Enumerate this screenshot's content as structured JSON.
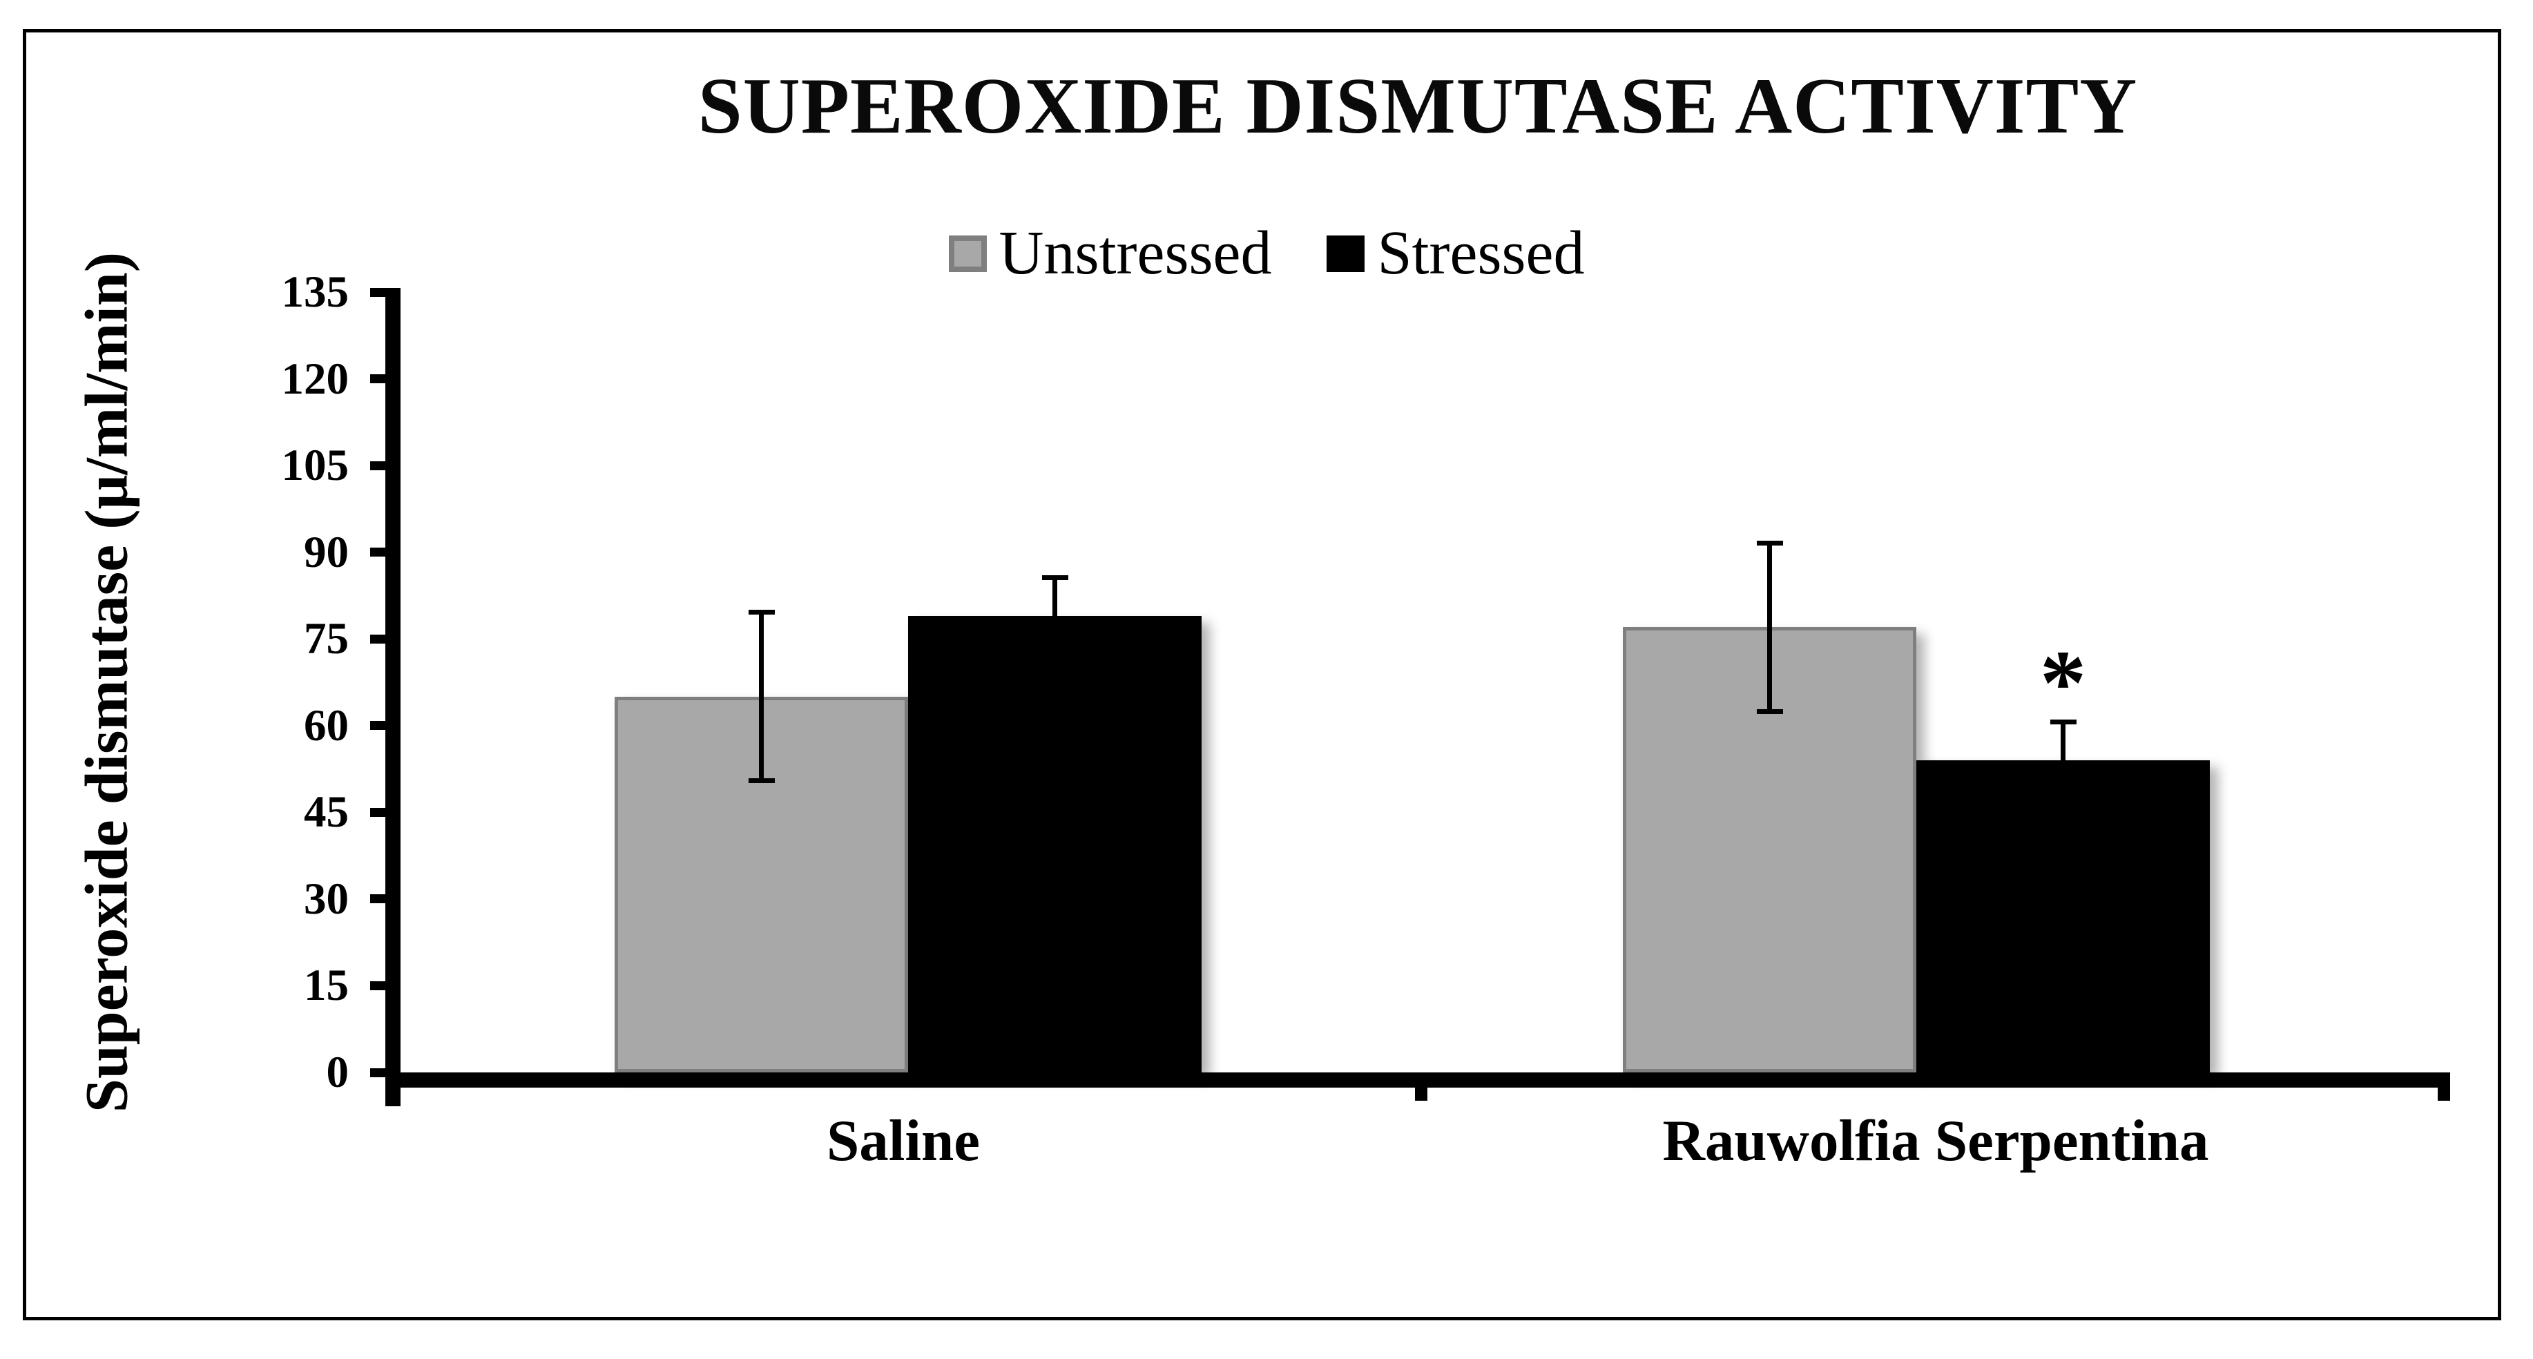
{
  "chart_data": {
    "type": "bar",
    "title": "SUPEROXIDE DISMUTASE ACTIVITY",
    "ylabel": "Superoxide dismutase (μ/ml/min)",
    "xlabel": "",
    "categories": [
      "Saline",
      "Rauwolfia Serpentina"
    ],
    "series": [
      {
        "name": "Unstressed",
        "color": "#a8a8a8",
        "border_color": "#7f7f7f",
        "values": [
          65,
          77
        ],
        "errors": [
          15,
          15
        ],
        "error_caps": "both"
      },
      {
        "name": "Stressed",
        "color": "#000000",
        "border_color": "#000000",
        "values": [
          79,
          54
        ],
        "errors": [
          7,
          7
        ],
        "error_caps": "upper"
      }
    ],
    "ylim": [
      0,
      135
    ],
    "ytick_step": 15,
    "yticks": [
      0,
      15,
      30,
      45,
      60,
      75,
      90,
      105,
      120,
      135
    ],
    "grid": false,
    "legend_position": "top-center",
    "annotations": [
      {
        "text": "*",
        "category": "Rauwolfia Serpentina",
        "series": "Stressed",
        "meaning": "statistically significant"
      }
    ]
  }
}
